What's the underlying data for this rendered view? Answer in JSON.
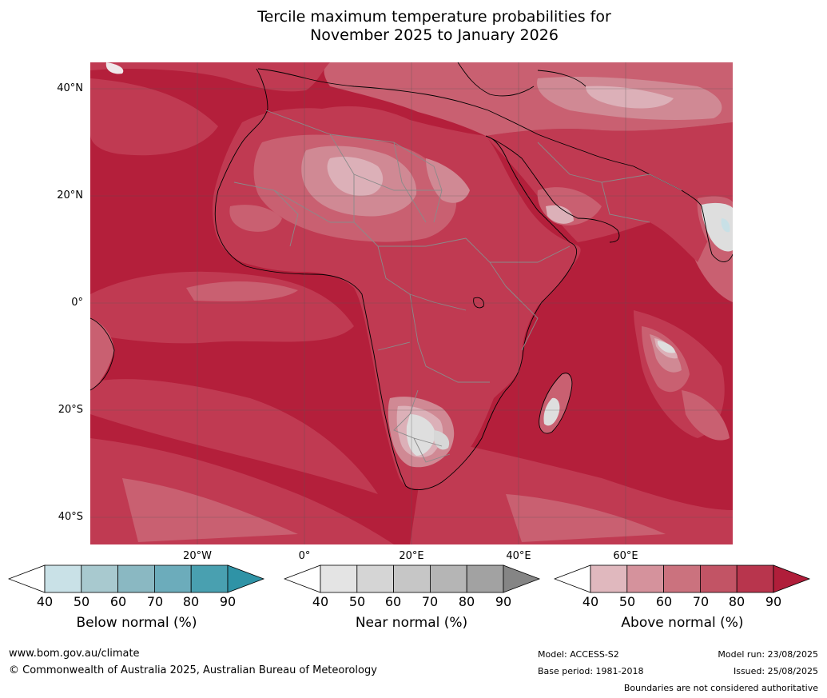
{
  "title_line1": "Tercile maximum temperature probabilities for",
  "title_line2": "November 2025 to January 2026",
  "map": {
    "lat_labels": [
      "40°N",
      "20°N",
      "0°",
      "20°S",
      "40°S"
    ],
    "lon_labels": [
      "20°W",
      "0°",
      "20°E",
      "40°E",
      "60°E"
    ],
    "colors": {
      "ocean_base": "#b41f3b",
      "a80": "#c03a52",
      "a70": "#c96071",
      "a60": "#d08994",
      "a50": "#dcb0b8",
      "near": "#dedede",
      "below": "#c8e0e6",
      "grid": "#555555",
      "coast": "#000000",
      "border": "#8a8a8a"
    }
  },
  "colorbars": [
    {
      "title": "Below normal (%)",
      "ticks": [
        "40",
        "50",
        "60",
        "70",
        "80",
        "90"
      ],
      "colors": [
        "#ffffff",
        "#c9e1e7",
        "#a8c9cf",
        "#8ab8c2",
        "#6cacbb",
        "#49a0b0",
        "#2f93a6"
      ]
    },
    {
      "title": "Near normal (%)",
      "ticks": [
        "40",
        "50",
        "60",
        "70",
        "80",
        "90"
      ],
      "colors": [
        "#ffffff",
        "#e4e4e4",
        "#d5d5d5",
        "#c6c6c6",
        "#b5b5b5",
        "#a2a2a2",
        "#858585"
      ]
    },
    {
      "title": "Above normal (%)",
      "ticks": [
        "40",
        "50",
        "60",
        "70",
        "80",
        "90"
      ],
      "colors": [
        "#ffffff",
        "#e0b8be",
        "#d5929c",
        "#cb727e",
        "#c25465",
        "#b8354d",
        "#b01e3a"
      ]
    }
  ],
  "footer": {
    "url": "www.bom.gov.au/climate",
    "copyright": "© Commonwealth of Australia 2025, Australian Bureau of Meteorology",
    "model": "Model: ACCESS-S2",
    "base_period": "Base period: 1981-2018",
    "model_run": "Model run: 23/08/2025",
    "issued": "Issued: 25/08/2025",
    "disclaimer": "Boundaries are not considered authoritative"
  }
}
